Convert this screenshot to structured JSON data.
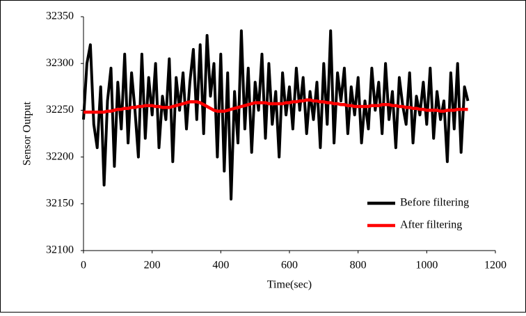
{
  "chart_data": {
    "type": "line",
    "x_label": "Time(sec)",
    "y_label": "Sensor Output",
    "x": [
      0,
      10,
      20,
      30,
      40,
      50,
      60,
      70,
      80,
      90,
      100,
      110,
      120,
      130,
      140,
      150,
      160,
      170,
      180,
      190,
      200,
      210,
      220,
      230,
      240,
      250,
      260,
      270,
      280,
      290,
      300,
      310,
      320,
      330,
      340,
      350,
      360,
      370,
      380,
      390,
      400,
      410,
      420,
      430,
      440,
      450,
      460,
      470,
      480,
      490,
      500,
      510,
      520,
      530,
      540,
      550,
      560,
      570,
      580,
      590,
      600,
      610,
      620,
      630,
      640,
      650,
      660,
      670,
      680,
      690,
      700,
      710,
      720,
      730,
      740,
      750,
      760,
      770,
      780,
      790,
      800,
      810,
      820,
      830,
      840,
      850,
      860,
      870,
      880,
      890,
      900,
      910,
      920,
      930,
      940,
      950,
      960,
      970,
      980,
      990,
      1000,
      1010,
      1020,
      1030,
      1040,
      1050,
      1060,
      1070,
      1080,
      1090,
      1100,
      1110,
      1120
    ],
    "series": [
      {
        "name": "Before filtering",
        "color": "#000000",
        "values": [
          32240,
          32300,
          32320,
          32235,
          32210,
          32275,
          32170,
          32260,
          32295,
          32190,
          32280,
          32230,
          32310,
          32215,
          32290,
          32250,
          32200,
          32310,
          32220,
          32285,
          32245,
          32300,
          32210,
          32265,
          32240,
          32305,
          32195,
          32285,
          32250,
          32290,
          32230,
          32280,
          32315,
          32240,
          32320,
          32225,
          32330,
          32265,
          32300,
          32200,
          32310,
          32185,
          32290,
          32155,
          32270,
          32215,
          32335,
          32230,
          32295,
          32205,
          32280,
          32250,
          32310,
          32220,
          32300,
          32235,
          32270,
          32200,
          32290,
          32245,
          32275,
          32230,
          32295,
          32250,
          32285,
          32225,
          32270,
          32240,
          32280,
          32210,
          32300,
          32235,
          32335,
          32215,
          32290,
          32260,
          32295,
          32225,
          32275,
          32245,
          32285,
          32215,
          32260,
          32230,
          32295,
          32250,
          32280,
          32225,
          32300,
          32240,
          32270,
          32210,
          32285,
          32255,
          32235,
          32290,
          32215,
          32265,
          32245,
          32280,
          32235,
          32295,
          32220,
          32270,
          32240,
          32260,
          32195,
          32290,
          32230,
          32300,
          32205,
          32275,
          32260
        ]
      },
      {
        "name": "After filtering",
        "color": "#ff0000",
        "values": [
          32248,
          32248,
          32248,
          32248,
          32248,
          32248,
          32248,
          32249,
          32249,
          32250,
          32251,
          32251,
          32252,
          32252,
          32253,
          32253,
          32254,
          32254,
          32255,
          32255,
          32255,
          32254,
          32254,
          32253,
          32253,
          32253,
          32254,
          32255,
          32256,
          32257,
          32258,
          32259,
          32259,
          32259,
          32258,
          32256,
          32254,
          32252,
          32250,
          32249,
          32249,
          32249,
          32250,
          32251,
          32252,
          32253,
          32254,
          32255,
          32256,
          32257,
          32258,
          32258,
          32258,
          32258,
          32257,
          32257,
          32257,
          32257,
          32257,
          32258,
          32258,
          32259,
          32259,
          32260,
          32260,
          32261,
          32261,
          32260,
          32260,
          32259,
          32259,
          32258,
          32258,
          32257,
          32257,
          32256,
          32256,
          32255,
          32255,
          32254,
          32254,
          32254,
          32254,
          32254,
          32255,
          32255,
          32255,
          32256,
          32256,
          32256,
          32255,
          32255,
          32254,
          32254,
          32253,
          32253,
          32252,
          32252,
          32251,
          32251,
          32250,
          32250,
          32250,
          32250,
          32249,
          32249,
          32250,
          32250,
          32250,
          32251,
          32251,
          32251,
          32251
        ]
      }
    ],
    "xlim": [
      0,
      1200
    ],
    "xticks": [
      0,
      200,
      400,
      600,
      800,
      1000,
      1200
    ],
    "ylim": [
      32100,
      32350
    ],
    "yticks": [
      32100,
      32150,
      32200,
      32250,
      32300,
      32350
    ],
    "grid": false,
    "legend": "lower right"
  }
}
